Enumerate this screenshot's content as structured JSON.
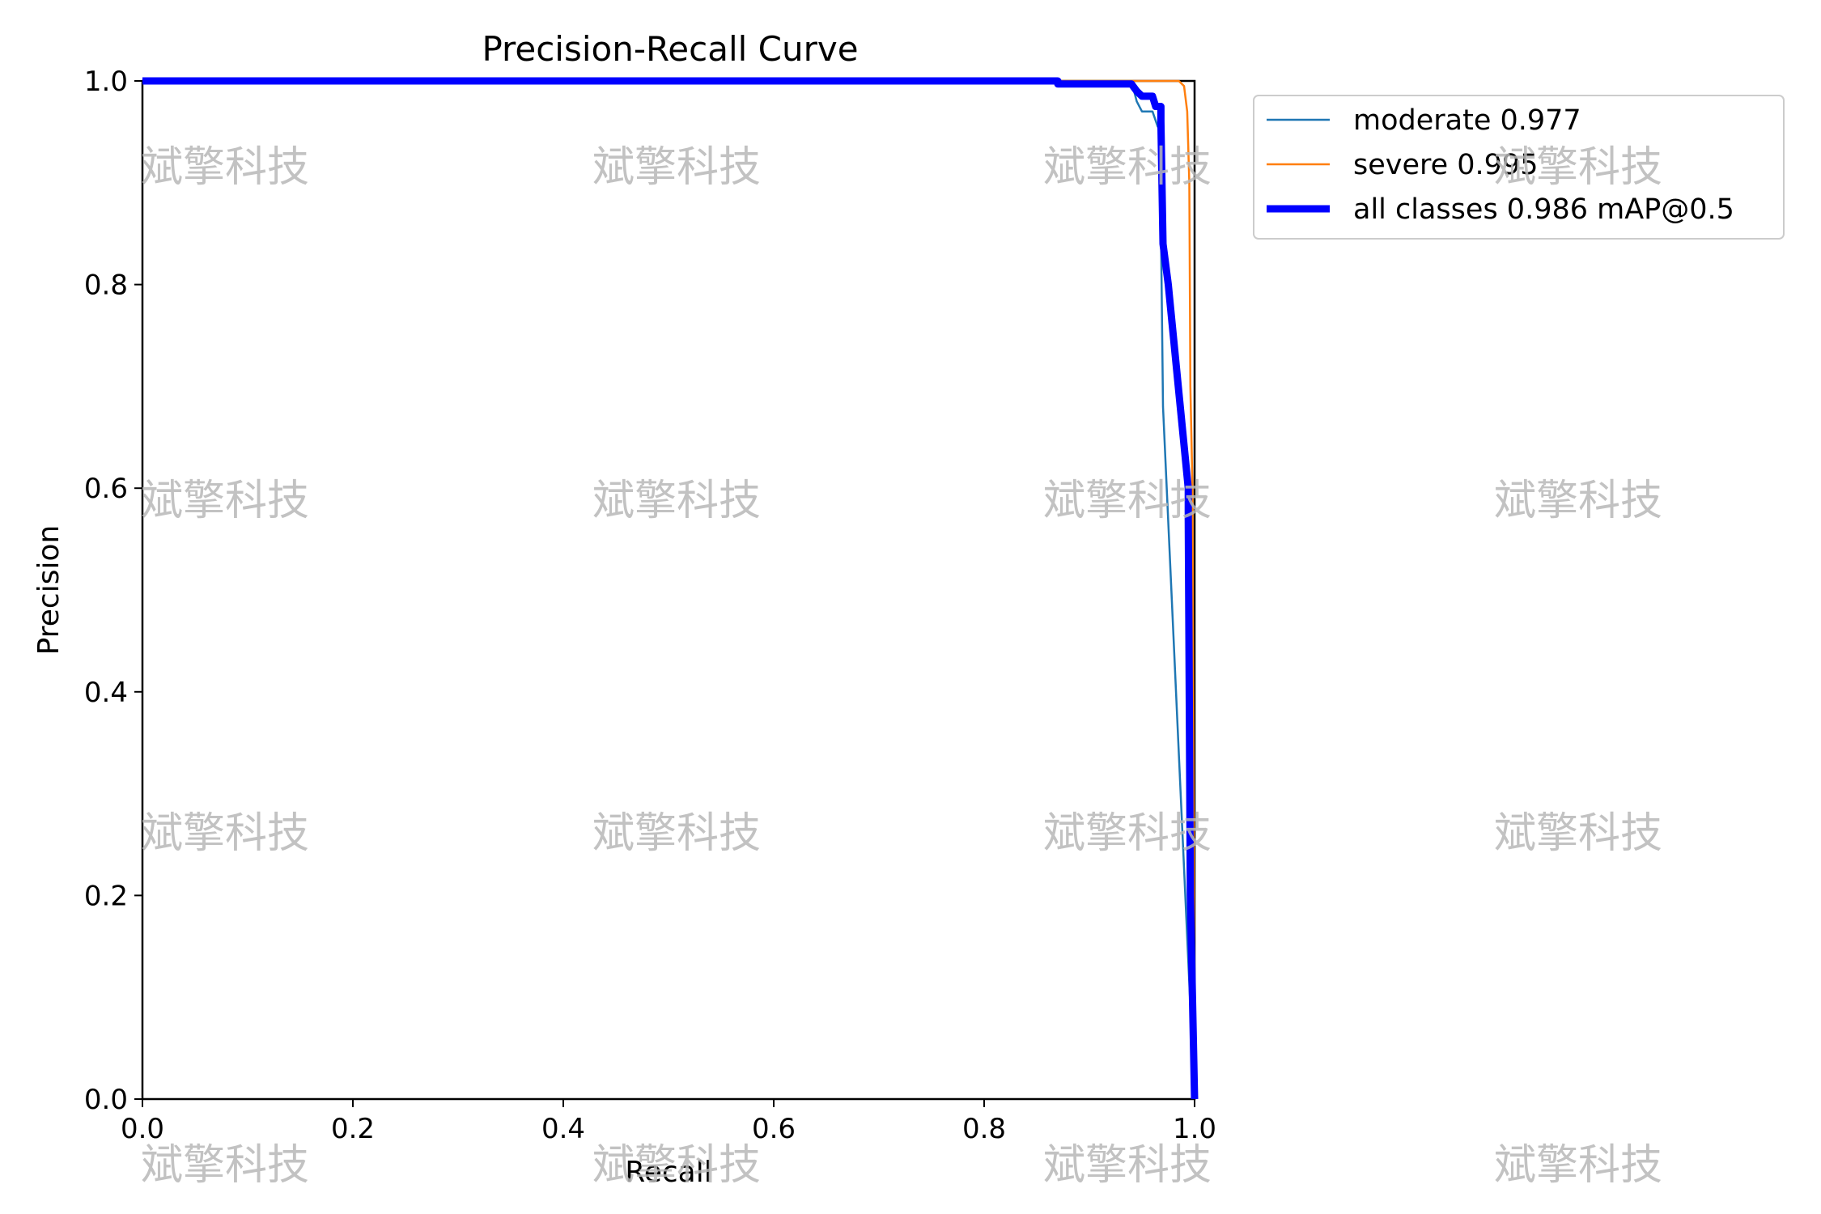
{
  "chart_data": {
    "type": "line",
    "title": "Precision-Recall Curve",
    "xlabel": "Recall",
    "ylabel": "Precision",
    "xlim": [
      0.0,
      1.0
    ],
    "ylim": [
      0.0,
      1.0
    ],
    "xticks": [
      "0.0",
      "0.2",
      "0.4",
      "0.6",
      "0.8",
      "1.0"
    ],
    "yticks": [
      "0.0",
      "0.2",
      "0.4",
      "0.6",
      "0.8",
      "1.0"
    ],
    "grid": false,
    "legend_position": "outside-top-right",
    "series": [
      {
        "name": "moderate 0.977",
        "color": "#1f77b4",
        "line_style": "thin",
        "points": [
          [
            0.0,
            1.0
          ],
          [
            0.94,
            1.0
          ],
          [
            0.945,
            0.98
          ],
          [
            0.95,
            0.97
          ],
          [
            0.96,
            0.97
          ],
          [
            0.965,
            0.955
          ],
          [
            0.967,
            0.955
          ],
          [
            0.968,
            0.86
          ],
          [
            0.97,
            0.68
          ],
          [
            1.0,
            0.0
          ]
        ]
      },
      {
        "name": "severe 0.995",
        "color": "#ff7f0e",
        "line_style": "thin",
        "points": [
          [
            0.0,
            1.0
          ],
          [
            0.985,
            1.0
          ],
          [
            0.99,
            0.995
          ],
          [
            0.993,
            0.97
          ],
          [
            0.995,
            0.9
          ],
          [
            0.996,
            0.7
          ],
          [
            0.998,
            0.6
          ],
          [
            1.0,
            0.0
          ]
        ]
      },
      {
        "name": "all classes 0.986 mAP@0.5",
        "color": "#0000ff",
        "line_style": "thick",
        "points": [
          [
            0.0,
            1.0
          ],
          [
            0.87,
            1.0
          ],
          [
            0.87,
            0.997
          ],
          [
            0.94,
            0.997
          ],
          [
            0.945,
            0.99
          ],
          [
            0.95,
            0.985
          ],
          [
            0.96,
            0.985
          ],
          [
            0.963,
            0.975
          ],
          [
            0.968,
            0.975
          ],
          [
            0.968,
            0.96
          ],
          [
            0.97,
            0.84
          ],
          [
            0.975,
            0.8
          ],
          [
            0.994,
            0.6
          ],
          [
            0.994,
            0.57
          ],
          [
            0.996,
            0.2
          ],
          [
            1.0,
            0.0
          ]
        ]
      }
    ]
  },
  "watermark": {
    "text": "斌擎科技"
  }
}
